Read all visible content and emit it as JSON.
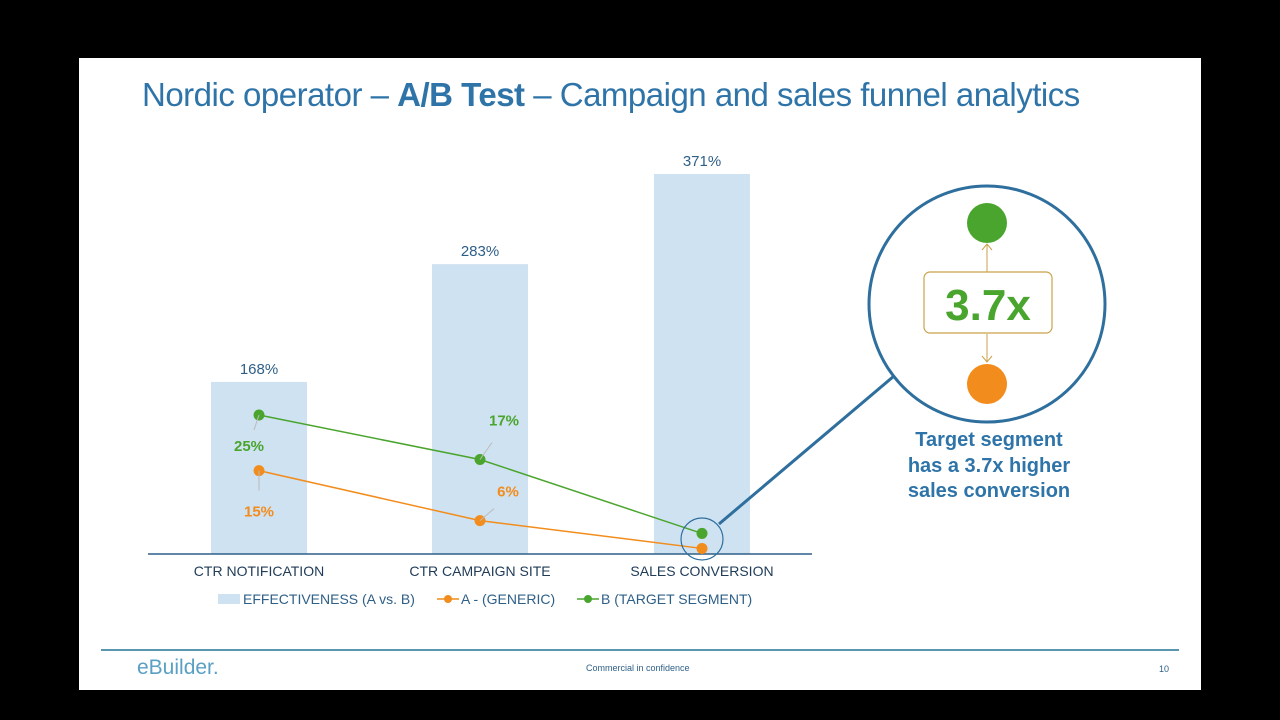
{
  "title": {
    "pre": "Nordic operator – ",
    "bold": "A/B Test",
    "post": " – Campaign and sales funnel analytics"
  },
  "chart_data": {
    "type": "bar+line",
    "categories": [
      "CTR NOTIFICATION",
      "CTR CAMPAIGN SITE",
      "SALES CONVERSION"
    ],
    "series": [
      {
        "name": "EFFECTIVENESS (A vs. B)",
        "type": "bar",
        "values": [
          168,
          283,
          371
        ],
        "labels": [
          "168%",
          "283%",
          "371%"
        ],
        "color": "#cfe2f1"
      },
      {
        "name": "A - (GENERIC)",
        "type": "line",
        "values": [
          15,
          6,
          1
        ],
        "labels": [
          "15%",
          "6%",
          ""
        ],
        "color": "#f28c1c"
      },
      {
        "name": "B (TARGET SEGMENT)",
        "type": "line",
        "values": [
          25,
          17,
          3.7
        ],
        "labels": [
          "25%",
          "17%",
          ""
        ],
        "color": "#4aa52e"
      }
    ],
    "bar_ylim": [
      0,
      371
    ],
    "line_ylim": [
      0,
      30
    ],
    "grid": false,
    "legend": "bottom"
  },
  "callout": {
    "ratio": "3.7x",
    "text": [
      "Target segment",
      "has a 3.7x higher",
      "sales conversion"
    ]
  },
  "footer": {
    "logo": "eBuilder.",
    "confidential": "Commercial in confidence",
    "page": "10"
  }
}
